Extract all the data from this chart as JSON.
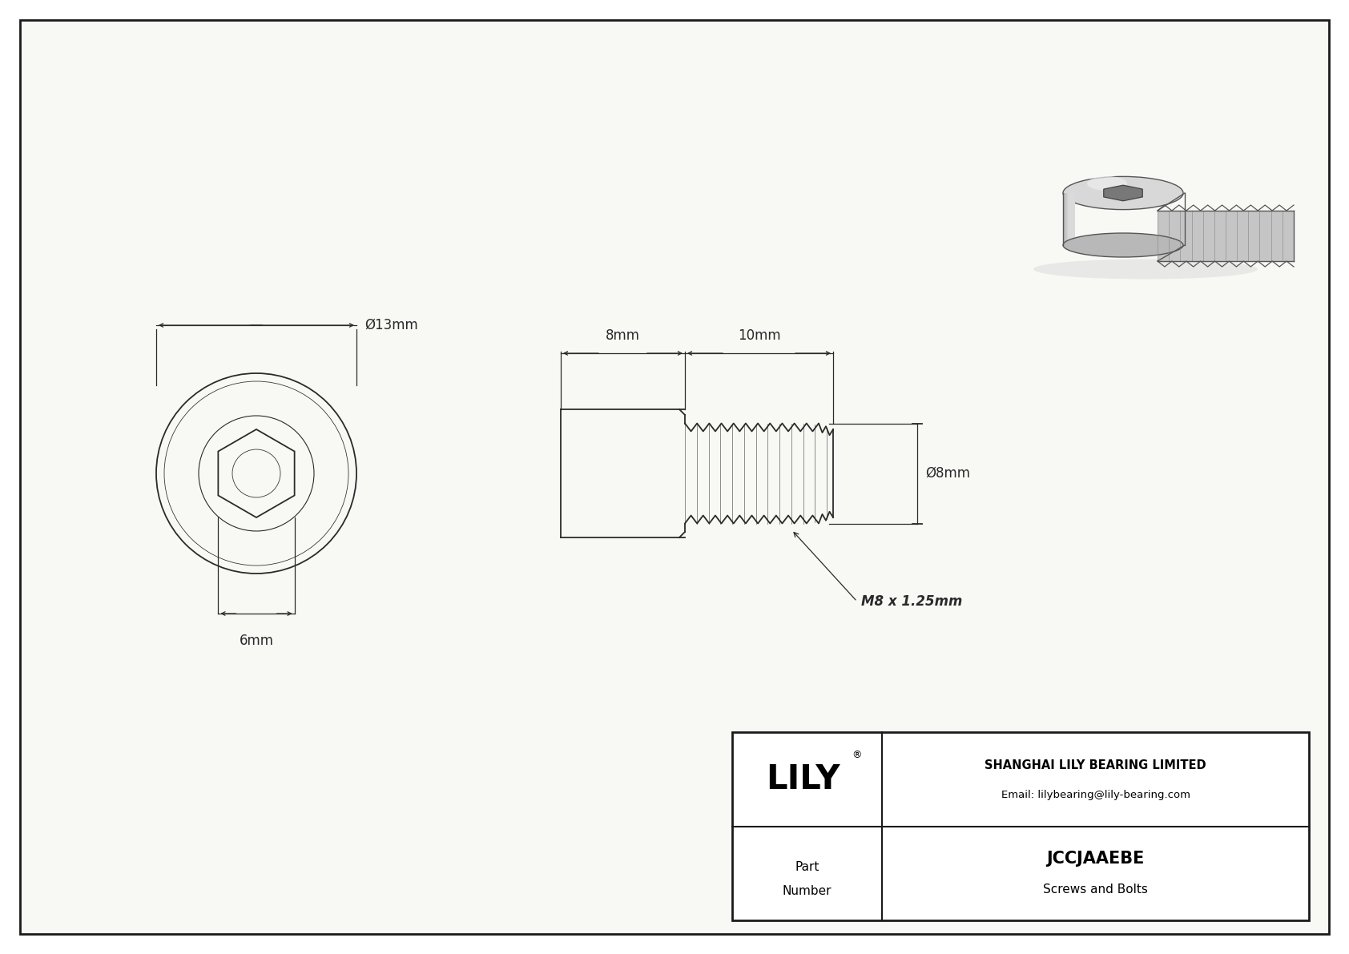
{
  "bg_color": "#ffffff",
  "drawing_bg": "#f8f8f5",
  "line_color": "#2a2a2a",
  "dim_color": "#2a2a2a",
  "title": "JCCJAAEBE",
  "subtitle": "Screws and Bolts",
  "company": "SHANGHAI LILY BEARING LIMITED",
  "email": "Email: lilybearing@lily-bearing.com",
  "part_label": "Part\nNumber",
  "dim_head_diameter": "Ø13mm",
  "dim_socket": "6mm",
  "dim_head_length": "8mm",
  "dim_thread_length": "10mm",
  "dim_thread_diameter": "Ø8mm",
  "dim_thread_label": "M8 x 1.25mm",
  "border_color": "#1a1a1a",
  "table_border": "#1a1a1a"
}
